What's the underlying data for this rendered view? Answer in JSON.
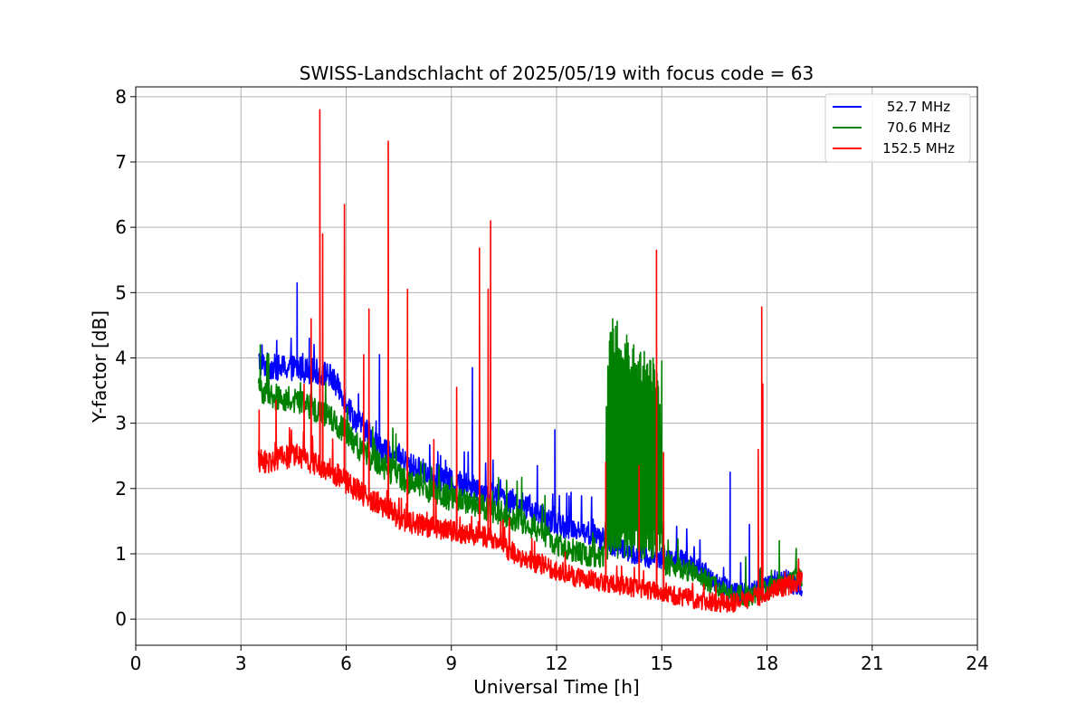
{
  "chart_data": {
    "type": "line",
    "title": "SWISS-Landschlacht of 2025/05/19 with focus code = 63",
    "xlabel": "Universal Time [h]",
    "ylabel": "Y-factor [dB]",
    "xlim": [
      0,
      24
    ],
    "ylim": [
      -0.4,
      8.15
    ],
    "xticks": [
      0,
      3,
      6,
      9,
      12,
      15,
      18,
      21,
      24
    ],
    "yticks": [
      0,
      1,
      2,
      3,
      4,
      5,
      6,
      7,
      8
    ],
    "grid": true,
    "legend_position": "top-right",
    "series": [
      {
        "name": "52.7 MHz",
        "color": "#0000ff",
        "noise": 0.12,
        "x": [
          3.5,
          3.6,
          4.0,
          4.5,
          5.0,
          5.5,
          5.9,
          6.2,
          6.5,
          7.0,
          7.5,
          8.0,
          8.5,
          9.0,
          9.5,
          10.0,
          10.5,
          11.0,
          11.5,
          12.0,
          12.5,
          13.0,
          13.4,
          13.8,
          14.2,
          14.6,
          15.0,
          15.5,
          16.0,
          16.5,
          16.9,
          17.3,
          17.7,
          18.0,
          18.5,
          19.0
        ],
        "y": [
          3.95,
          3.9,
          3.85,
          3.85,
          3.8,
          3.75,
          3.45,
          3.1,
          2.95,
          2.6,
          2.45,
          2.3,
          2.2,
          2.1,
          2.05,
          1.95,
          1.85,
          1.75,
          1.6,
          1.45,
          1.4,
          1.3,
          1.2,
          1.1,
          1.0,
          0.95,
          0.95,
          0.9,
          0.8,
          0.6,
          0.45,
          0.4,
          0.45,
          0.5,
          0.6,
          0.5
        ],
        "spikes": [
          {
            "x": 3.6,
            "y": 4.2
          },
          {
            "x": 4.6,
            "y": 5.15
          },
          {
            "x": 4.95,
            "y": 4.3
          },
          {
            "x": 6.35,
            "y": 3.45
          },
          {
            "x": 6.95,
            "y": 4.05
          },
          {
            "x": 9.6,
            "y": 3.85
          },
          {
            "x": 11.45,
            "y": 2.35
          },
          {
            "x": 11.95,
            "y": 2.9
          },
          {
            "x": 16.95,
            "y": 2.25
          },
          {
            "x": 17.5,
            "y": 1.45
          }
        ]
      },
      {
        "name": "70.6 MHz",
        "color": "#008000",
        "noise": 0.12,
        "x": [
          3.5,
          3.6,
          4.0,
          4.5,
          5.0,
          5.5,
          6.0,
          6.5,
          7.0,
          7.5,
          8.0,
          8.5,
          9.0,
          9.5,
          10.0,
          10.5,
          11.0,
          11.5,
          12.0,
          12.5,
          13.0,
          13.35,
          13.5,
          13.7,
          14.0,
          14.3,
          14.6,
          14.9,
          15.05,
          15.5,
          16.0,
          16.5,
          17.0,
          17.5,
          18.0,
          18.5,
          19.0
        ],
        "y": [
          3.5,
          3.5,
          3.4,
          3.35,
          3.25,
          3.1,
          2.85,
          2.55,
          2.35,
          2.2,
          2.05,
          1.95,
          1.85,
          1.8,
          1.7,
          1.6,
          1.5,
          1.35,
          1.15,
          1.05,
          0.95,
          0.95,
          3.0,
          3.2,
          3.0,
          2.8,
          2.6,
          2.5,
          0.85,
          0.8,
          0.7,
          0.5,
          0.4,
          0.35,
          0.45,
          0.55,
          0.65
        ],
        "spikes": [
          {
            "x": 3.55,
            "y": 4.2
          },
          {
            "x": 13.6,
            "y": 4.6
          },
          {
            "x": 14.0,
            "y": 4.35
          },
          {
            "x": 14.2,
            "y": 4.2
          },
          {
            "x": 14.5,
            "y": 4.1
          },
          {
            "x": 14.75,
            "y": 4.0
          },
          {
            "x": 15.0,
            "y": 3.95
          },
          {
            "x": 17.75,
            "y": 1.35
          },
          {
            "x": 18.35,
            "y": 1.2
          }
        ]
      },
      {
        "name": "152.5 MHz",
        "color": "#ff0000",
        "noise": 0.1,
        "x": [
          3.5,
          3.6,
          4.0,
          4.5,
          5.0,
          5.5,
          6.0,
          6.5,
          7.0,
          7.5,
          8.0,
          8.5,
          9.0,
          9.5,
          10.0,
          10.5,
          11.0,
          11.5,
          12.0,
          12.5,
          13.0,
          13.5,
          14.0,
          14.5,
          15.0,
          15.5,
          16.0,
          16.5,
          17.0,
          17.5,
          18.0,
          18.5,
          19.0
        ],
        "y": [
          2.45,
          2.4,
          2.45,
          2.5,
          2.4,
          2.3,
          2.1,
          1.9,
          1.75,
          1.55,
          1.45,
          1.4,
          1.35,
          1.3,
          1.25,
          1.1,
          0.95,
          0.85,
          0.75,
          0.65,
          0.6,
          0.55,
          0.5,
          0.45,
          0.4,
          0.35,
          0.3,
          0.25,
          0.25,
          0.3,
          0.4,
          0.5,
          0.6
        ],
        "spikes": [
          {
            "x": 3.52,
            "y": 3.2
          },
          {
            "x": 4.0,
            "y": 3.35
          },
          {
            "x": 4.8,
            "y": 3.6
          },
          {
            "x": 5.0,
            "y": 4.6
          },
          {
            "x": 5.25,
            "y": 7.8
          },
          {
            "x": 5.33,
            "y": 5.9
          },
          {
            "x": 5.95,
            "y": 6.35
          },
          {
            "x": 6.5,
            "y": 4.05
          },
          {
            "x": 6.65,
            "y": 4.75
          },
          {
            "x": 7.2,
            "y": 7.32
          },
          {
            "x": 7.75,
            "y": 5.05
          },
          {
            "x": 8.5,
            "y": 2.75
          },
          {
            "x": 9.15,
            "y": 3.55
          },
          {
            "x": 9.8,
            "y": 5.68
          },
          {
            "x": 10.05,
            "y": 5.05
          },
          {
            "x": 10.12,
            "y": 6.1
          },
          {
            "x": 13.4,
            "y": 2.4
          },
          {
            "x": 14.35,
            "y": 2.35
          },
          {
            "x": 14.85,
            "y": 5.65
          },
          {
            "x": 15.05,
            "y": 2.55
          },
          {
            "x": 17.75,
            "y": 2.6
          },
          {
            "x": 17.85,
            "y": 4.78
          },
          {
            "x": 17.88,
            "y": 3.6
          }
        ]
      }
    ]
  }
}
